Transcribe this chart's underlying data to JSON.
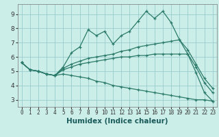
{
  "xlabel": "Humidex (Indice chaleur)",
  "background_color": "#cceee8",
  "grid_color": "#99cccc",
  "line_color": "#2a7a6a",
  "xlim": [
    -0.5,
    23.5
  ],
  "ylim": [
    2.5,
    9.7
  ],
  "xticks": [
    0,
    1,
    2,
    3,
    4,
    5,
    6,
    7,
    8,
    9,
    10,
    11,
    12,
    13,
    14,
    15,
    16,
    17,
    18,
    19,
    20,
    21,
    22,
    23
  ],
  "yticks": [
    3,
    4,
    5,
    6,
    7,
    8,
    9
  ],
  "lines": [
    {
      "x": [
        0,
        1,
        2,
        3,
        4,
        5,
        6,
        7,
        8,
        9,
        10,
        11,
        12,
        13,
        14,
        15,
        16,
        17,
        18,
        19,
        20,
        21,
        22,
        23
      ],
      "y": [
        5.6,
        5.1,
        5.0,
        4.8,
        4.7,
        5.3,
        6.3,
        6.7,
        7.9,
        7.5,
        7.8,
        6.9,
        7.5,
        7.8,
        8.5,
        9.2,
        8.7,
        9.2,
        8.4,
        7.2,
        6.2,
        4.9,
        3.5,
        2.9
      ]
    },
    {
      "x": [
        0,
        1,
        2,
        3,
        4,
        5,
        6,
        7,
        8,
        9,
        10,
        11,
        12,
        13,
        14,
        15,
        16,
        17,
        18,
        19,
        20,
        21,
        22,
        23
      ],
      "y": [
        5.6,
        5.1,
        5.0,
        4.8,
        4.7,
        5.2,
        5.5,
        5.7,
        5.9,
        6.0,
        6.1,
        6.2,
        6.4,
        6.5,
        6.7,
        6.8,
        6.9,
        7.0,
        7.1,
        7.2,
        6.5,
        5.5,
        4.5,
        3.8
      ]
    },
    {
      "x": [
        0,
        1,
        2,
        3,
        4,
        5,
        6,
        7,
        8,
        9,
        10,
        11,
        12,
        13,
        14,
        15,
        16,
        17,
        18,
        19,
        20,
        21,
        22,
        23
      ],
      "y": [
        5.6,
        5.1,
        5.0,
        4.8,
        4.7,
        5.1,
        5.3,
        5.5,
        5.6,
        5.7,
        5.8,
        5.9,
        6.0,
        6.0,
        6.1,
        6.1,
        6.2,
        6.2,
        6.2,
        6.2,
        6.2,
        5.3,
        4.2,
        3.5
      ]
    },
    {
      "x": [
        0,
        1,
        2,
        3,
        4,
        5,
        6,
        7,
        8,
        9,
        10,
        11,
        12,
        13,
        14,
        15,
        16,
        17,
        18,
        19,
        20,
        21,
        22,
        23
      ],
      "y": [
        5.6,
        5.1,
        5.0,
        4.8,
        4.7,
        4.8,
        4.7,
        4.6,
        4.5,
        4.3,
        4.2,
        4.0,
        3.9,
        3.8,
        3.7,
        3.6,
        3.5,
        3.4,
        3.3,
        3.2,
        3.1,
        3.0,
        3.0,
        2.9
      ]
    }
  ]
}
